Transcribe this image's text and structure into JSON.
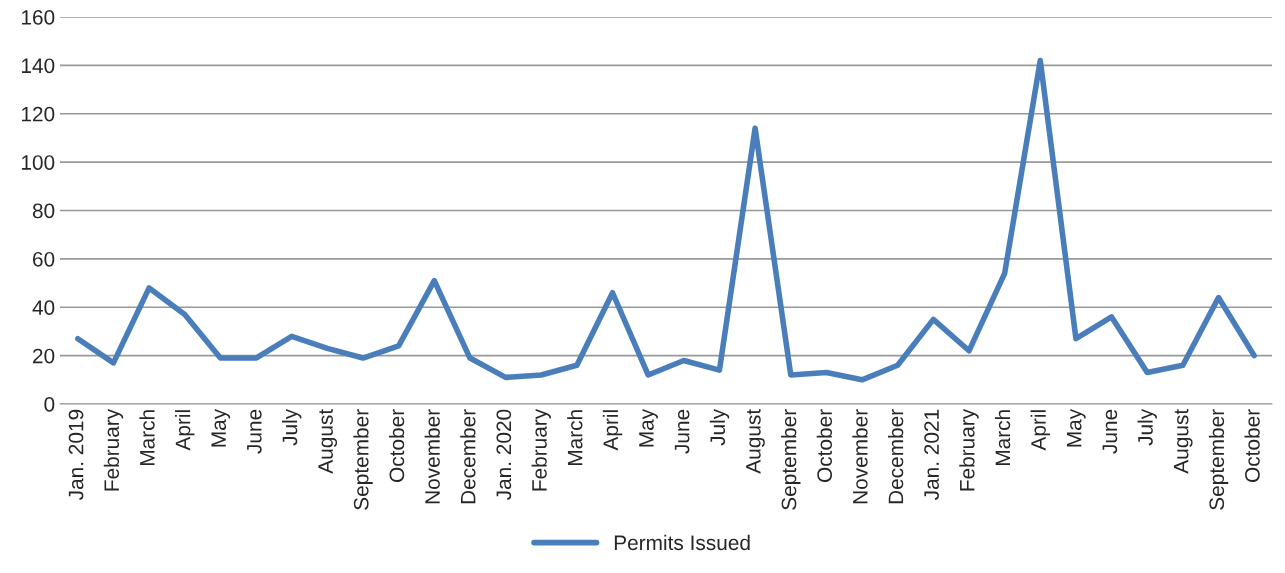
{
  "chart_data": {
    "type": "line",
    "categories": [
      "Jan. 2019",
      "February",
      "March",
      "April",
      "May",
      "June",
      "July",
      "August",
      "September",
      "October",
      "November",
      "December",
      "Jan. 2020",
      "February",
      "March",
      "April",
      "May",
      "June",
      "July",
      "August",
      "September",
      "October",
      "November",
      "December",
      "Jan. 2021",
      "February",
      "March",
      "April",
      "May",
      "June",
      "July",
      "August",
      "September",
      "October"
    ],
    "series": [
      {
        "name": "Permits Issued",
        "color": "#4a7ebb",
        "values": [
          27,
          17,
          48,
          37,
          19,
          19,
          28,
          23,
          19,
          24,
          51,
          19,
          11,
          12,
          16,
          46,
          12,
          18,
          14,
          114,
          12,
          13,
          10,
          16,
          35,
          22,
          54,
          142,
          27,
          36,
          13,
          16,
          44,
          20
        ]
      }
    ],
    "ylim": [
      0,
      160
    ],
    "yticks": [
      0,
      20,
      40,
      60,
      80,
      100,
      120,
      140,
      160
    ],
    "grid": "y",
    "legend": "bottom",
    "marker": "none",
    "line_style": "solid"
  }
}
